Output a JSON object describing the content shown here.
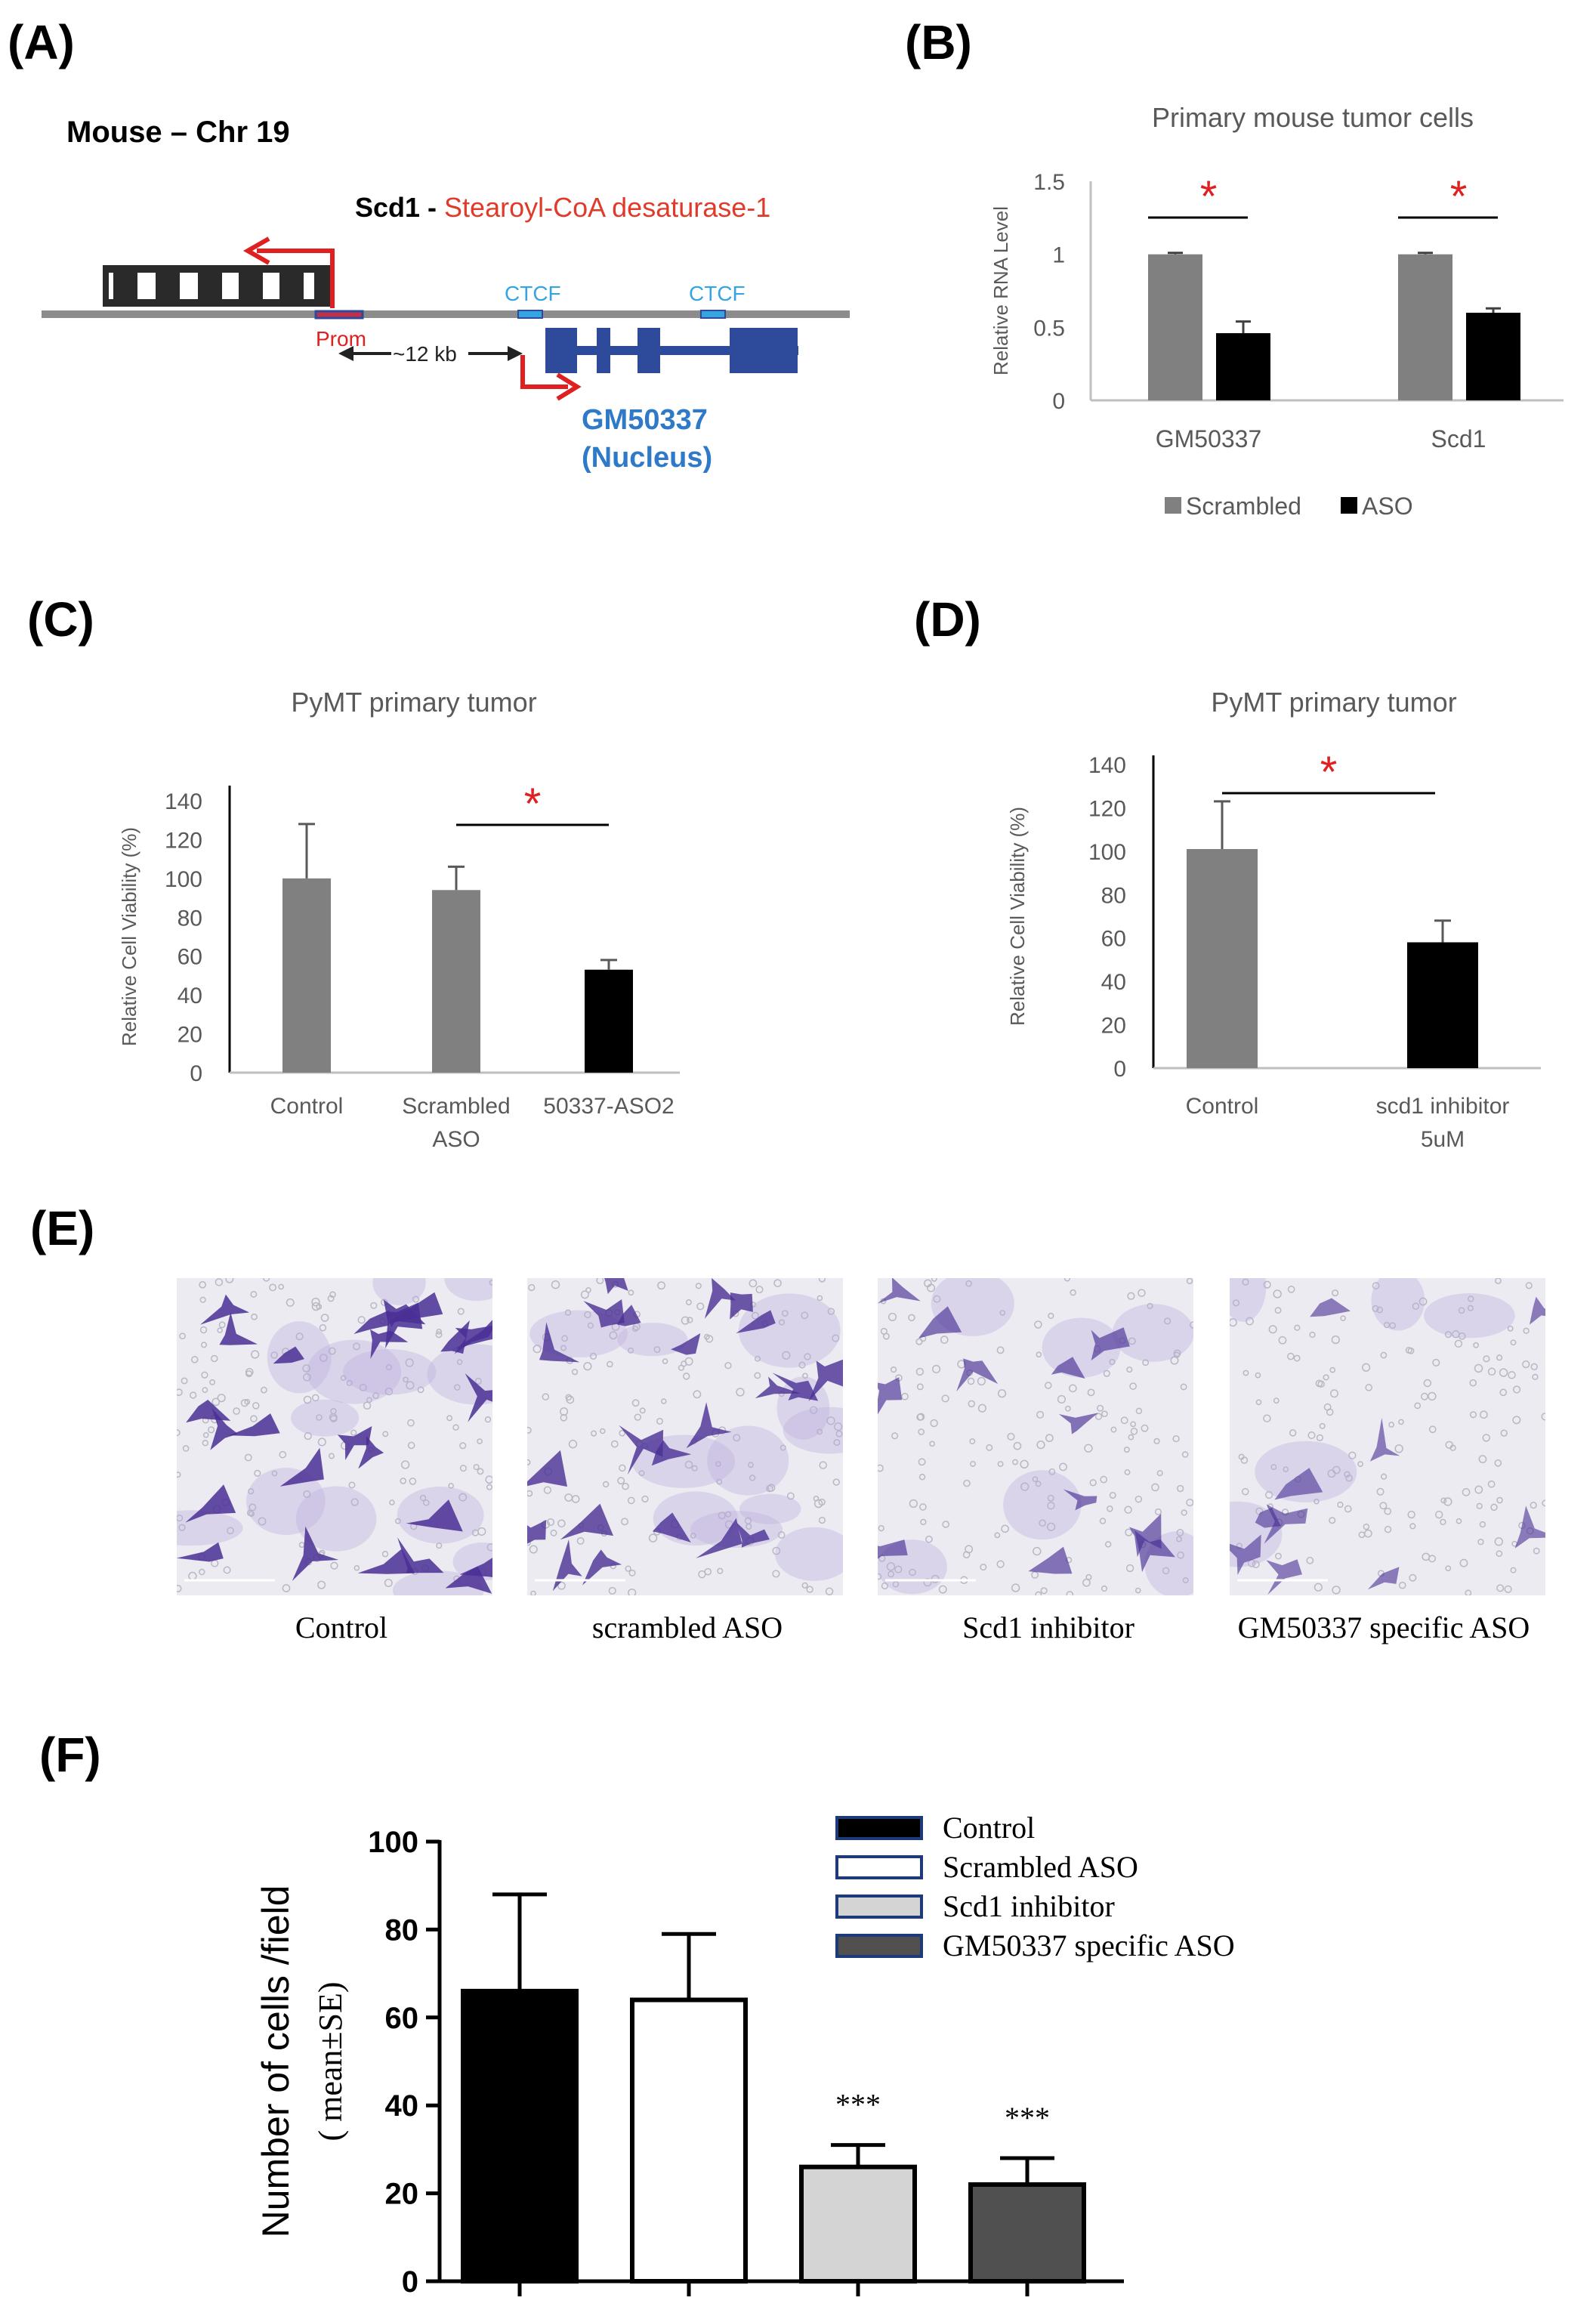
{
  "panels": {
    "A": {
      "label": "(A)",
      "header": "Mouse – Chr 19",
      "gene_name": "Scd1",
      "gene_sep": " - ",
      "gene_desc": "Stearoyl-CoA desaturase-1",
      "prom": "Prom",
      "ctcf1": "CTCF",
      "ctcf2": "CTCF",
      "distance": "~12 kb",
      "lnc_name": "GM50337",
      "lnc_loc": "(Nucleus)",
      "colors": {
        "gene": "#2a2a2a",
        "lnc": "#2e4a9a",
        "arrow": "#e02020",
        "ctcf": "#35a4e0",
        "line": "#888888"
      }
    },
    "B": {
      "label": "(B)"
    },
    "C": {
      "label": "(C)"
    },
    "D": {
      "label": "(D)"
    },
    "E": {
      "label": "(E)",
      "captions": [
        "Control",
        "scrambled ASO",
        "Scd1  inhibitor",
        "GM50337 specific ASO"
      ],
      "stain_color": "#5a3aa0"
    },
    "F": {
      "label": "(F)"
    }
  },
  "chart_data": [
    {
      "id": "B",
      "type": "bar",
      "title": "Primary mouse tumor cells",
      "categories": [
        "GM50337",
        "Scd1"
      ],
      "series": [
        {
          "name": "Scrambled",
          "values": [
            1.0,
            1.0
          ],
          "errors": [
            0.01,
            0.01
          ],
          "color": "#808080"
        },
        {
          "name": "ASO",
          "values": [
            0.46,
            0.6
          ],
          "errors": [
            0.08,
            0.03
          ],
          "color": "#000000"
        }
      ],
      "ylabel": "Relative RNA Level",
      "ylim": [
        0,
        1.5
      ],
      "yticks": [
        "0",
        "0.5",
        "1",
        "1.5"
      ],
      "significance": [
        "*",
        "*"
      ],
      "legend": "bottom"
    },
    {
      "id": "C",
      "type": "bar",
      "title": "PyMT primary tumor",
      "categories": [
        "Control",
        "Scrambled ASO",
        "50337-ASO2"
      ],
      "category_lines": [
        [
          "Control"
        ],
        [
          "Scrambled",
          "ASO"
        ],
        [
          "50337-ASO2"
        ]
      ],
      "values": [
        100,
        94,
        53
      ],
      "errors": [
        28,
        12,
        5
      ],
      "colors": [
        "#808080",
        "#808080",
        "#000000"
      ],
      "ylabel": "Relative Cell Viability (%)",
      "ylim": [
        0,
        140
      ],
      "yticks": [
        "0",
        "20",
        "40",
        "60",
        "80",
        "100",
        "120",
        "140"
      ],
      "significance": "*"
    },
    {
      "id": "D",
      "type": "bar",
      "title": "PyMT primary tumor",
      "categories": [
        "Control",
        "scd1 inhibitor 5uM"
      ],
      "category_lines": [
        [
          "Control"
        ],
        [
          "scd1 inhibitor",
          "5uM"
        ]
      ],
      "values": [
        101,
        58
      ],
      "errors": [
        22,
        10
      ],
      "colors": [
        "#808080",
        "#000000"
      ],
      "ylabel": "Relative Cell Viability (%)",
      "ylim": [
        0,
        140
      ],
      "yticks": [
        "0",
        "20",
        "40",
        "60",
        "80",
        "100",
        "120",
        "140"
      ],
      "significance": "*"
    },
    {
      "id": "F",
      "type": "bar",
      "categories": [
        "Control",
        "Scrambled ASO",
        "Scd1 inhibitor",
        "GM50337 specific ASO"
      ],
      "values": [
        66,
        64,
        26,
        22
      ],
      "errors": [
        22,
        15,
        5,
        6
      ],
      "fills": [
        "#000000",
        "#ffffff",
        "#d4d4d4",
        "#505050"
      ],
      "ylabel_line1": "Number of cells /field",
      "ylabel_line2": "( mean±SE)",
      "ylim": [
        0,
        100
      ],
      "yticks": [
        "0",
        "20",
        "40",
        "60",
        "80",
        "100"
      ],
      "significance": [
        "",
        "",
        "***",
        "***"
      ],
      "legend": "top-right"
    }
  ]
}
